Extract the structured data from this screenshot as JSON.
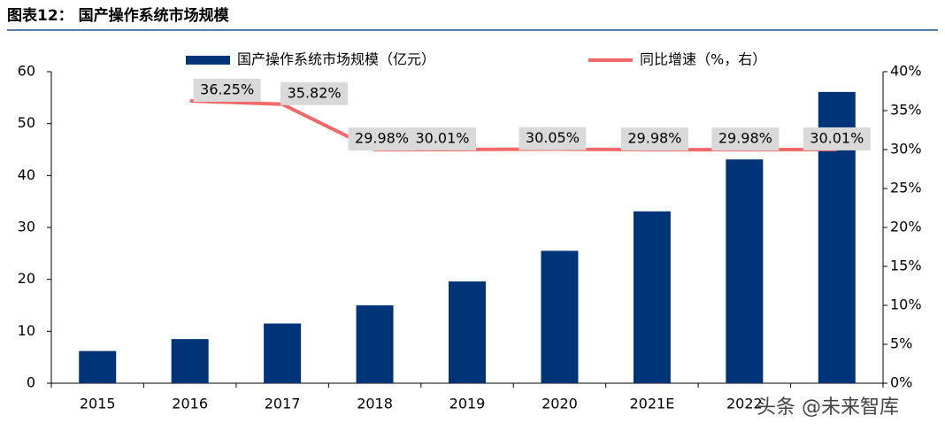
{
  "chart_data": {
    "type": "bar_line",
    "title": "图表12：  国产操作系统市场规模",
    "categories": [
      "2015",
      "2016",
      "2017",
      "2018",
      "2019",
      "2020",
      "2021E",
      "2022",
      null
    ],
    "series": [
      {
        "name": "国产操作系统市场规模（亿元）",
        "color": "#003479",
        "type": "bar",
        "values": [
          6.2,
          8.5,
          11.5,
          15.0,
          19.6,
          25.5,
          33.1,
          43.1,
          56.1
        ]
      },
      {
        "name": "同比增速（%，右）",
        "color": "#f4686a",
        "type": "line",
        "axis": "y2",
        "values": [
          null,
          36.25,
          35.82,
          29.98,
          30.01,
          30.05,
          29.98,
          29.98,
          30.01
        ],
        "value_labels": [
          null,
          "36.25%",
          "35.82%",
          "29.98%",
          "30.01%",
          "30.05%",
          "29.98%",
          "29.98%",
          "30.01%"
        ]
      }
    ],
    "ylim": [
      0,
      60
    ],
    "yticks": [
      0,
      10,
      20,
      30,
      40,
      50,
      60
    ],
    "y2lim": [
      0,
      40
    ],
    "y2ticks": [
      {
        "value": 0,
        "label": "0%"
      },
      {
        "value": 5,
        "label": "5%"
      },
      {
        "value": 10,
        "label": "10%"
      },
      {
        "value": 15,
        "label": "15%"
      },
      {
        "value": 20,
        "label": "20%"
      },
      {
        "value": 25,
        "label": "25%"
      },
      {
        "value": 30,
        "label": "30%"
      },
      {
        "value": 35,
        "label": "35%"
      },
      {
        "value": 40,
        "label": "40%"
      }
    ],
    "legend": "top",
    "watermark": "头条 @未来智库"
  }
}
